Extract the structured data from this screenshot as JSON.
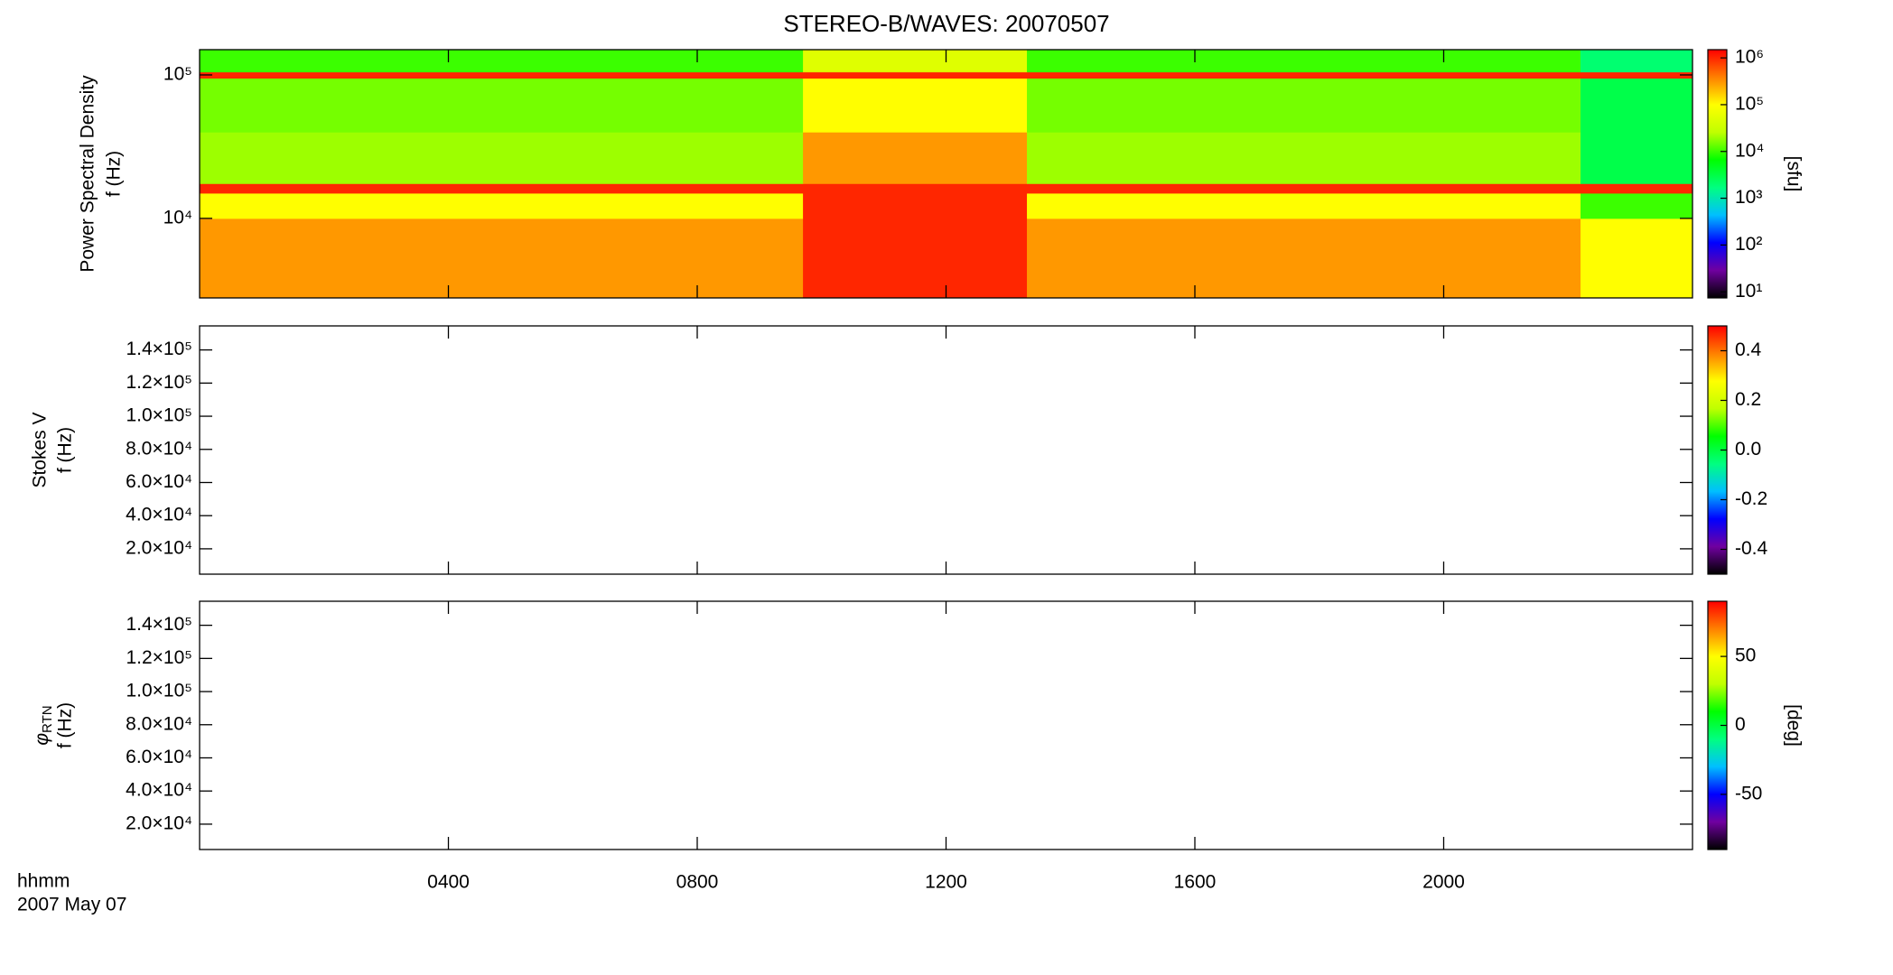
{
  "chart_data": [
    {
      "type": "heatmap",
      "title": "STEREO-B/WAVES: 20070507",
      "ylabel": [
        "Power Spectral Density",
        "f (Hz)"
      ],
      "ylog": true,
      "ylim": [
        2790,
        150000
      ],
      "yticks": [
        {
          "value": 10000,
          "label": "10⁴"
        },
        {
          "value": 100000,
          "label": "10⁵"
        }
      ],
      "x_edges": [
        0,
        9.7,
        13.3,
        22.2,
        24
      ],
      "y_edges": [
        2790,
        10000,
        15000,
        17500,
        40000,
        95000,
        105000,
        150000
      ],
      "z": [
        [
          300000,
          1000000,
          300000,
          100000
        ],
        [
          100000,
          1000000,
          100000,
          10000
        ],
        [
          1000000,
          1000000,
          1000000,
          1000000
        ],
        [
          20000,
          300000,
          20000,
          3000
        ],
        [
          15000,
          100000,
          15000,
          3000
        ],
        [
          1000000,
          1000000,
          1000000,
          1000000
        ],
        [
          10000,
          50000,
          10000,
          2000
        ]
      ],
      "colorbar": {
        "log": true,
        "lim": [
          7.4,
          1500000
        ],
        "label": "[sfu]",
        "ticks": [
          {
            "value": 10,
            "label": "10¹"
          },
          {
            "value": 100,
            "label": "10²"
          },
          {
            "value": 1000,
            "label": "10³"
          },
          {
            "value": 10000,
            "label": "10⁴"
          },
          {
            "value": 100000,
            "label": "10⁵"
          },
          {
            "value": 1000000,
            "label": "10⁶"
          }
        ]
      },
      "colormap": [
        "#000000",
        "#7000a0",
        "#0000ff",
        "#00bfff",
        "#00ff80",
        "#00ff00",
        "#c0ff00",
        "#ffff00",
        "#ff8000",
        "#ff0000"
      ]
    },
    {
      "type": "heatmap",
      "ylabel": [
        "Stokes V",
        "f (Hz)"
      ],
      "ylim": [
        4700,
        154500
      ],
      "yticks": [
        {
          "value": 20000,
          "label": "2.0×10⁴"
        },
        {
          "value": 40000,
          "label": "4.0×10⁴"
        },
        {
          "value": 60000,
          "label": "6.0×10⁴"
        },
        {
          "value": 80000,
          "label": "8.0×10⁴"
        },
        {
          "value": 100000,
          "label": "1.0×10⁵"
        },
        {
          "value": 120000,
          "label": "1.2×10⁵"
        },
        {
          "value": 140000,
          "label": "1.4×10⁵"
        }
      ],
      "colorbar": {
        "lim": [
          -0.5,
          0.5
        ],
        "ticks": [
          -0.4,
          -0.2,
          {
            "value": 0,
            "label": "0.0"
          },
          0.2,
          0.4
        ]
      }
    },
    {
      "type": "heatmap",
      "ylabel_symbol": {
        "symbol": "φ",
        "subscript": "RTN"
      },
      "ylabel": [
        "f (Hz)"
      ],
      "ylim": [
        4700,
        154500
      ],
      "yticks": [
        {
          "value": 20000,
          "label": "2.0×10⁴"
        },
        {
          "value": 40000,
          "label": "4.0×10⁴"
        },
        {
          "value": 60000,
          "label": "6.0×10⁴"
        },
        {
          "value": 80000,
          "label": "8.0×10⁴"
        },
        {
          "value": 100000,
          "label": "1.0×10⁵"
        },
        {
          "value": 120000,
          "label": "1.2×10⁵"
        },
        {
          "value": 140000,
          "label": "1.4×10⁵"
        }
      ],
      "colorbar": {
        "lim": [
          -90,
          90
        ],
        "label": "[deg]",
        "ticks": [
          -50,
          0,
          50
        ]
      },
      "xlabel": "hhmm",
      "date": "2007 May 07",
      "xlim": [
        0,
        24
      ],
      "xticks": [
        {
          "value": 4,
          "label": "0400"
        },
        {
          "value": 8,
          "label": "0800"
        },
        {
          "value": 12,
          "label": "1200"
        },
        {
          "value": 16,
          "label": "1600"
        },
        {
          "value": 20,
          "label": "2000"
        }
      ]
    }
  ]
}
